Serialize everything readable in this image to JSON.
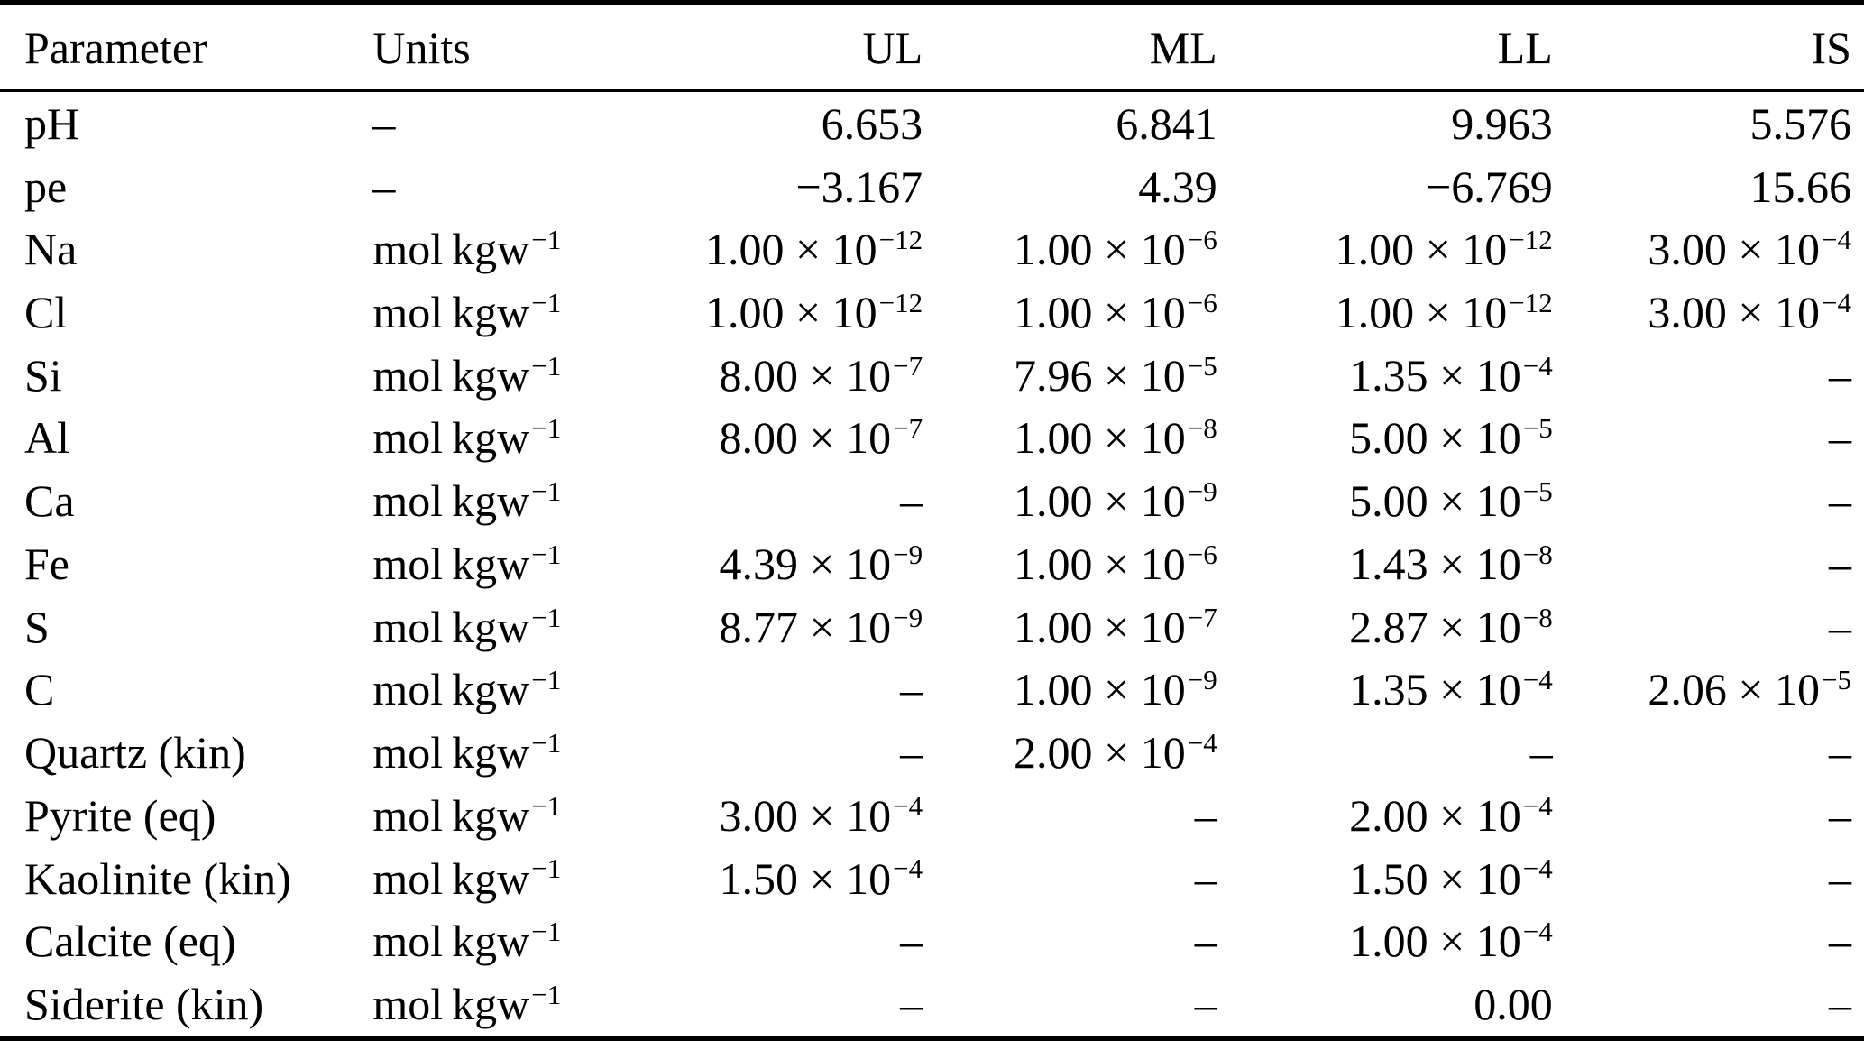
{
  "colors": {
    "background": "#ffffff",
    "text": "#000000",
    "rule": "#000000"
  },
  "table": {
    "columns": [
      {
        "key": "parameter",
        "label": "Parameter"
      },
      {
        "key": "units",
        "label": "Units"
      },
      {
        "key": "ul",
        "label": "UL"
      },
      {
        "key": "ml",
        "label": "ML"
      },
      {
        "key": "ll",
        "label": "LL"
      },
      {
        "key": "is",
        "label": "IS"
      }
    ],
    "rows": [
      {
        "parameter": "pH",
        "units": "–",
        "ul": "6.653",
        "ml": "6.841",
        "ll": "9.963",
        "is": "5.576"
      },
      {
        "parameter": "pe",
        "units": "–",
        "ul": "−3.167",
        "ml": "4.39",
        "ll": "−6.769",
        "is": "15.66"
      },
      {
        "parameter": "Na",
        "units": "mol kgw^−1",
        "ul": "1.00 × 10^−12",
        "ml": "1.00 × 10^−6",
        "ll": "1.00 × 10^−12",
        "is": "3.00 × 10^−4"
      },
      {
        "parameter": "Cl",
        "units": "mol kgw^−1",
        "ul": "1.00 × 10^−12",
        "ml": "1.00 × 10^−6",
        "ll": "1.00 × 10^−12",
        "is": "3.00 × 10^−4"
      },
      {
        "parameter": "Si",
        "units": "mol kgw^−1",
        "ul": "8.00 × 10^−7",
        "ml": "7.96 × 10^−5",
        "ll": "1.35 × 10^−4",
        "is": "–"
      },
      {
        "parameter": "Al",
        "units": "mol kgw^−1",
        "ul": "8.00 × 10^−7",
        "ml": "1.00 × 10^−8",
        "ll": "5.00 × 10^−5",
        "is": "–"
      },
      {
        "parameter": "Ca",
        "units": "mol kgw^−1",
        "ul": "–",
        "ml": "1.00 × 10^−9",
        "ll": "5.00 × 10^−5",
        "is": "–"
      },
      {
        "parameter": "Fe",
        "units": "mol kgw^−1",
        "ul": "4.39 × 10^−9",
        "ml": "1.00 × 10^−6",
        "ll": "1.43 × 10^−8",
        "is": "–"
      },
      {
        "parameter": "S",
        "units": "mol kgw^−1",
        "ul": "8.77 × 10^−9",
        "ml": "1.00 × 10^−7",
        "ll": "2.87 × 10^−8",
        "is": "–"
      },
      {
        "parameter": "C",
        "units": "mol kgw^−1",
        "ul": "–",
        "ml": "1.00 × 10^−9",
        "ll": "1.35 × 10^−4",
        "is": "2.06 × 10^−5"
      },
      {
        "parameter": "Quartz (kin)",
        "units": "mol kgw^−1",
        "ul": "–",
        "ml": "2.00 × 10^−4",
        "ll": "–",
        "is": "–"
      },
      {
        "parameter": "Pyrite (eq)",
        "units": "mol kgw^−1",
        "ul": "3.00 × 10^−4",
        "ml": "–",
        "ll": "2.00 × 10^−4",
        "is": "–"
      },
      {
        "parameter": "Kaolinite (kin)",
        "units": "mol kgw^−1",
        "ul": "1.50 × 10^−4",
        "ml": "–",
        "ll": "1.50 × 10^−4",
        "is": "–"
      },
      {
        "parameter": "Calcite (eq)",
        "units": "mol kgw^−1",
        "ul": "–",
        "ml": "–",
        "ll": "1.00 × 10^−4",
        "is": "–"
      },
      {
        "parameter": "Siderite (kin)",
        "units": "mol kgw^−1",
        "ul": "–",
        "ml": "–",
        "ll": "0.00",
        "is": "–"
      }
    ]
  },
  "chart_data": {
    "type": "table",
    "title": "",
    "columns": [
      "Parameter",
      "Units",
      "UL",
      "ML",
      "LL",
      "IS"
    ],
    "rows": [
      [
        "pH",
        "-",
        "6.653",
        "6.841",
        "9.963",
        "5.576"
      ],
      [
        "pe",
        "-",
        "-3.167",
        "4.39",
        "-6.769",
        "15.66"
      ],
      [
        "Na",
        "mol kgw^-1",
        "1.00e-12",
        "1.00e-6",
        "1.00e-12",
        "3.00e-4"
      ],
      [
        "Cl",
        "mol kgw^-1",
        "1.00e-12",
        "1.00e-6",
        "1.00e-12",
        "3.00e-4"
      ],
      [
        "Si",
        "mol kgw^-1",
        "8.00e-7",
        "7.96e-5",
        "1.35e-4",
        "-"
      ],
      [
        "Al",
        "mol kgw^-1",
        "8.00e-7",
        "1.00e-8",
        "5.00e-5",
        "-"
      ],
      [
        "Ca",
        "mol kgw^-1",
        "-",
        "1.00e-9",
        "5.00e-5",
        "-"
      ],
      [
        "Fe",
        "mol kgw^-1",
        "4.39e-9",
        "1.00e-6",
        "1.43e-8",
        "-"
      ],
      [
        "S",
        "mol kgw^-1",
        "8.77e-9",
        "1.00e-7",
        "2.87e-8",
        "-"
      ],
      [
        "C",
        "mol kgw^-1",
        "-",
        "1.00e-9",
        "1.35e-4",
        "2.06e-5"
      ],
      [
        "Quartz (kin)",
        "mol kgw^-1",
        "-",
        "2.00e-4",
        "-",
        "-"
      ],
      [
        "Pyrite (eq)",
        "mol kgw^-1",
        "3.00e-4",
        "-",
        "2.00e-4",
        "-"
      ],
      [
        "Kaolinite (kin)",
        "mol kgw^-1",
        "1.50e-4",
        "-",
        "1.50e-4",
        "-"
      ],
      [
        "Calcite (eq)",
        "mol kgw^-1",
        "-",
        "-",
        "1.00e-4",
        "-"
      ],
      [
        "Siderite (kin)",
        "mol kgw^-1",
        "-",
        "-",
        "0.00",
        "-"
      ]
    ]
  }
}
